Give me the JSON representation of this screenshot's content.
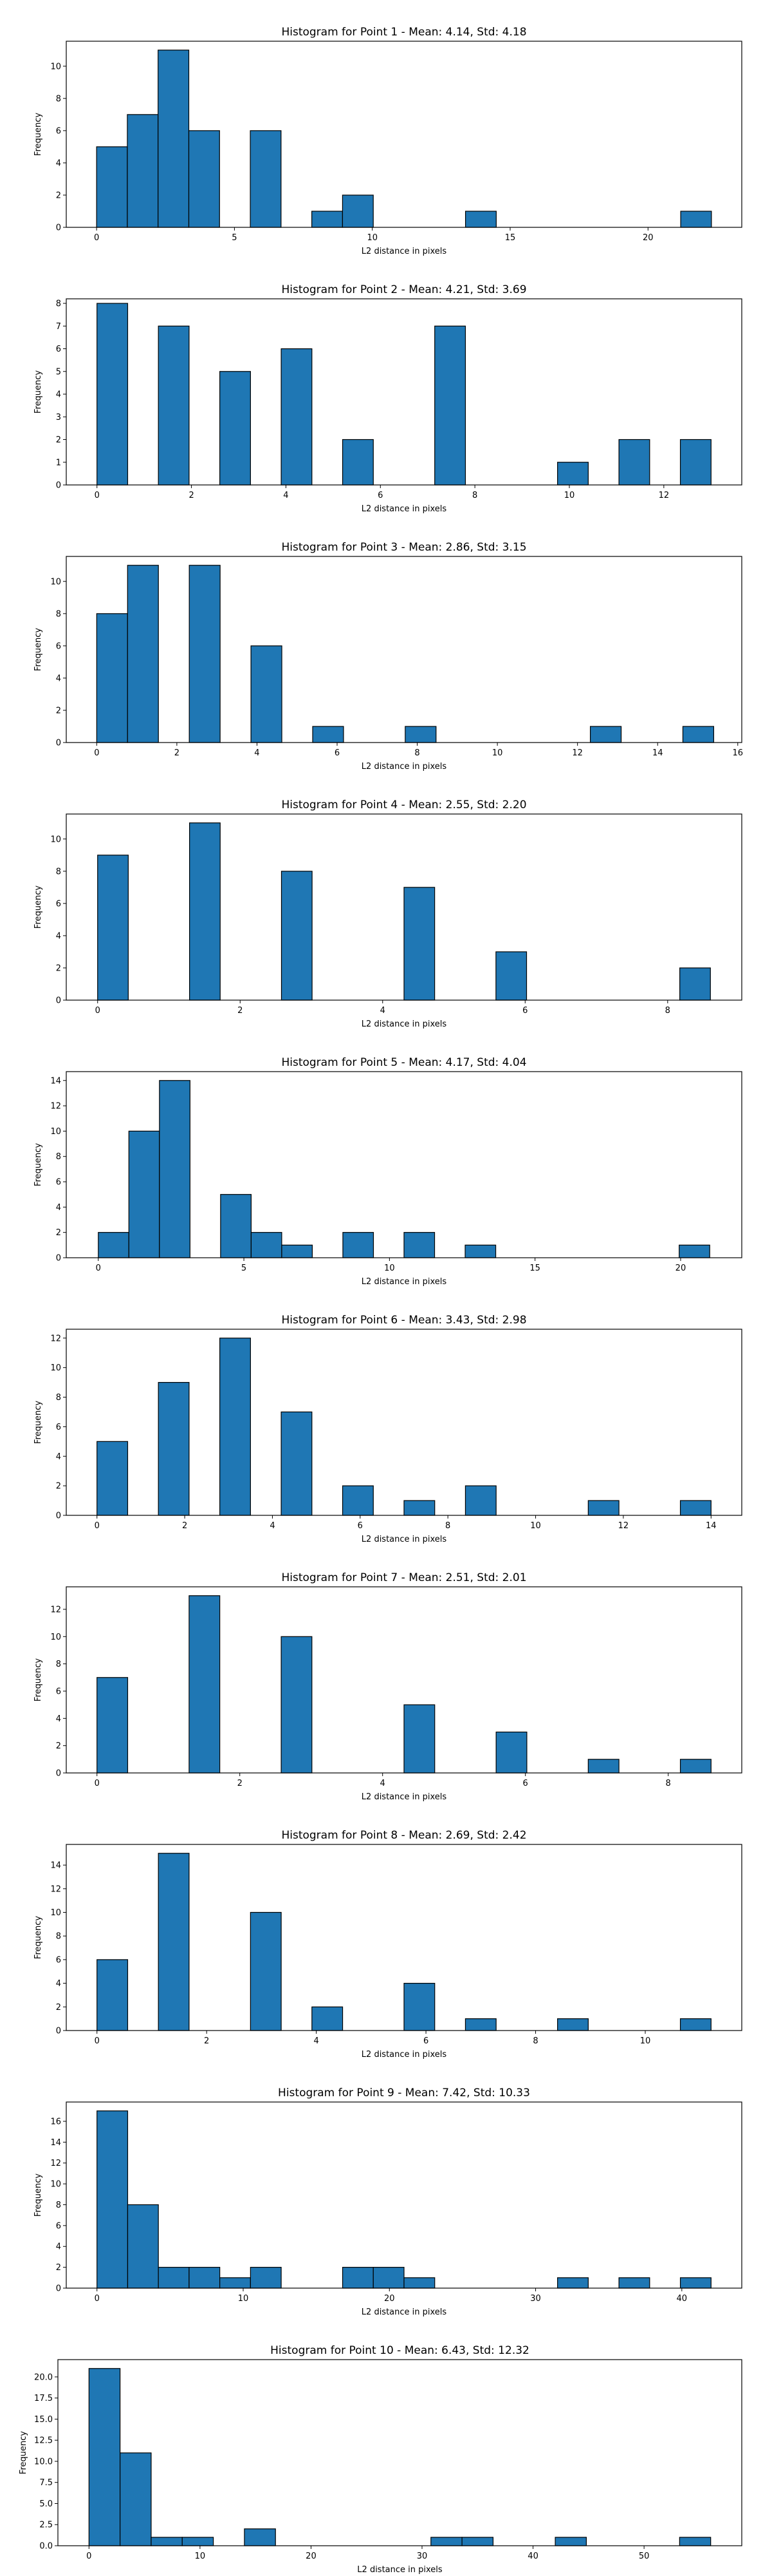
{
  "colors": {
    "bar_fill": "#1f77b4",
    "bar_edge": "#000000",
    "axis": "#000000",
    "background": "#ffffff"
  },
  "chart_data": [
    {
      "type": "bar",
      "title": "Histogram for Point 1 - Mean: 4.14, Std: 4.18",
      "xlabel": "L2 distance in pixels",
      "ylabel": "Frequency",
      "xlim": [
        -1.1,
        23.4
      ],
      "ylim": [
        0,
        11.55
      ],
      "xticks": [
        0,
        5,
        10,
        15,
        20
      ],
      "yticks": [
        0,
        2,
        4,
        6,
        8,
        10
      ],
      "bin_width": 1.115,
      "bins": [
        {
          "start": 0.0,
          "count": 5
        },
        {
          "start": 1.115,
          "count": 7
        },
        {
          "start": 2.23,
          "count": 11
        },
        {
          "start": 3.345,
          "count": 6
        },
        {
          "start": 5.575,
          "count": 6
        },
        {
          "start": 7.805,
          "count": 1
        },
        {
          "start": 8.92,
          "count": 2
        },
        {
          "start": 13.38,
          "count": 1
        },
        {
          "start": 21.185,
          "count": 1
        }
      ]
    },
    {
      "type": "bar",
      "title": "Histogram for Point 2 - Mean: 4.21, Std: 3.69",
      "xlabel": "L2 distance in pixels",
      "ylabel": "Frequency",
      "xlim": [
        -0.65,
        13.65
      ],
      "ylim": [
        0,
        8.2
      ],
      "xticks": [
        0,
        2,
        4,
        6,
        8,
        10,
        12
      ],
      "yticks": [
        0,
        1,
        2,
        3,
        4,
        5,
        6,
        7,
        8
      ],
      "bin_width": 0.65,
      "bins": [
        {
          "start": 0.0,
          "count": 8
        },
        {
          "start": 1.3,
          "count": 7
        },
        {
          "start": 2.6,
          "count": 5
        },
        {
          "start": 3.9,
          "count": 6
        },
        {
          "start": 5.2,
          "count": 2
        },
        {
          "start": 7.15,
          "count": 7
        },
        {
          "start": 9.75,
          "count": 1
        },
        {
          "start": 11.05,
          "count": 2
        },
        {
          "start": 12.35,
          "count": 2
        }
      ]
    },
    {
      "type": "bar",
      "title": "Histogram for Point 3 - Mean: 2.86, Std: 3.15",
      "xlabel": "L2 distance in pixels",
      "ylabel": "Frequency",
      "xlim": [
        -0.76,
        16.1
      ],
      "ylim": [
        0,
        11.55
      ],
      "xticks": [
        0,
        2,
        4,
        6,
        8,
        10,
        12,
        14,
        16
      ],
      "yticks": [
        0,
        2,
        4,
        6,
        8,
        10
      ],
      "bin_width": 0.77,
      "bins": [
        {
          "start": 0.0,
          "count": 8
        },
        {
          "start": 0.77,
          "count": 11
        },
        {
          "start": 2.31,
          "count": 11
        },
        {
          "start": 3.85,
          "count": 6
        },
        {
          "start": 5.39,
          "count": 1
        },
        {
          "start": 7.7,
          "count": 1
        },
        {
          "start": 12.32,
          "count": 1
        },
        {
          "start": 14.63,
          "count": 1
        }
      ]
    },
    {
      "type": "bar",
      "title": "Histogram for Point 4 - Mean: 2.55, Std: 2.20",
      "xlabel": "L2 distance in pixels",
      "ylabel": "Frequency",
      "xlim": [
        -0.44,
        9.04
      ],
      "ylim": [
        0,
        11.55
      ],
      "xticks": [
        0,
        2,
        4,
        6,
        8
      ],
      "yticks": [
        0,
        2,
        4,
        6,
        8,
        10
      ],
      "bin_width": 0.43,
      "bins": [
        {
          "start": 0.0,
          "count": 9
        },
        {
          "start": 1.29,
          "count": 11
        },
        {
          "start": 2.58,
          "count": 8
        },
        {
          "start": 4.3,
          "count": 7
        },
        {
          "start": 5.59,
          "count": 3
        },
        {
          "start": 8.17,
          "count": 2
        }
      ]
    },
    {
      "type": "bar",
      "title": "Histogram for Point 5 - Mean: 4.17, Std: 4.04",
      "xlabel": "L2 distance in pixels",
      "ylabel": "Frequency",
      "xlim": [
        -1.1,
        22.1
      ],
      "ylim": [
        0,
        14.7
      ],
      "xticks": [
        0,
        5,
        10,
        15,
        20
      ],
      "yticks": [
        0,
        2,
        4,
        6,
        8,
        10,
        12,
        14
      ],
      "bin_width": 1.05,
      "bins": [
        {
          "start": 0.0,
          "count": 2
        },
        {
          "start": 1.05,
          "count": 10
        },
        {
          "start": 2.1,
          "count": 14
        },
        {
          "start": 4.2,
          "count": 5
        },
        {
          "start": 5.25,
          "count": 2
        },
        {
          "start": 6.3,
          "count": 1
        },
        {
          "start": 8.4,
          "count": 2
        },
        {
          "start": 10.5,
          "count": 2
        },
        {
          "start": 12.6,
          "count": 1
        },
        {
          "start": 19.95,
          "count": 1
        }
      ]
    },
    {
      "type": "bar",
      "title": "Histogram for Point 6 - Mean: 3.43, Std: 2.98",
      "xlabel": "L2 distance in pixels",
      "ylabel": "Frequency",
      "xlim": [
        -0.7,
        14.7
      ],
      "ylim": [
        0,
        12.6
      ],
      "xticks": [
        0,
        2,
        4,
        6,
        8,
        10,
        12,
        14
      ],
      "yticks": [
        0,
        2,
        4,
        6,
        8,
        10,
        12
      ],
      "bin_width": 0.7,
      "bins": [
        {
          "start": 0.0,
          "count": 5
        },
        {
          "start": 1.4,
          "count": 9
        },
        {
          "start": 2.8,
          "count": 12
        },
        {
          "start": 4.2,
          "count": 7
        },
        {
          "start": 5.6,
          "count": 2
        },
        {
          "start": 7.0,
          "count": 1
        },
        {
          "start": 8.4,
          "count": 2
        },
        {
          "start": 11.2,
          "count": 1
        },
        {
          "start": 13.3,
          "count": 1
        }
      ]
    },
    {
      "type": "bar",
      "title": "Histogram for Point 7 - Mean: 2.51, Std: 2.01",
      "xlabel": "L2 distance in pixels",
      "ylabel": "Frequency",
      "xlim": [
        -0.43,
        9.03
      ],
      "ylim": [
        0,
        13.65
      ],
      "xticks": [
        0,
        2,
        4,
        6,
        8
      ],
      "yticks": [
        0,
        2,
        4,
        6,
        8,
        10,
        12
      ],
      "bin_width": 0.43,
      "bins": [
        {
          "start": 0.0,
          "count": 7
        },
        {
          "start": 1.29,
          "count": 13
        },
        {
          "start": 2.58,
          "count": 10
        },
        {
          "start": 4.3,
          "count": 5
        },
        {
          "start": 5.59,
          "count": 3
        },
        {
          "start": 6.88,
          "count": 1
        },
        {
          "start": 8.17,
          "count": 1
        }
      ]
    },
    {
      "type": "bar",
      "title": "Histogram for Point 8 - Mean: 2.69, Std: 2.42",
      "xlabel": "L2 distance in pixels",
      "ylabel": "Frequency",
      "xlim": [
        -0.56,
        11.76
      ],
      "ylim": [
        0,
        15.75
      ],
      "xticks": [
        0,
        2,
        4,
        6,
        8,
        10
      ],
      "yticks": [
        0,
        2,
        4,
        6,
        8,
        10,
        12,
        14
      ],
      "bin_width": 0.56,
      "bins": [
        {
          "start": 0.0,
          "count": 6
        },
        {
          "start": 1.12,
          "count": 15
        },
        {
          "start": 2.8,
          "count": 10
        },
        {
          "start": 3.92,
          "count": 2
        },
        {
          "start": 5.6,
          "count": 4
        },
        {
          "start": 6.72,
          "count": 1
        },
        {
          "start": 8.4,
          "count": 1
        },
        {
          "start": 10.64,
          "count": 1
        }
      ]
    },
    {
      "type": "bar",
      "title": "Histogram for Point 9 - Mean: 7.42, Std: 10.33",
      "xlabel": "L2 distance in pixels",
      "ylabel": "Frequency",
      "xlim": [
        -2.1,
        44.1
      ],
      "ylim": [
        0,
        17.85
      ],
      "xticks": [
        0,
        10,
        20,
        30,
        40
      ],
      "yticks": [
        0,
        2,
        4,
        6,
        8,
        10,
        12,
        14,
        16
      ],
      "bin_width": 2.1,
      "bins": [
        {
          "start": 0.0,
          "count": 17
        },
        {
          "start": 2.1,
          "count": 8
        },
        {
          "start": 4.2,
          "count": 2
        },
        {
          "start": 6.3,
          "count": 2
        },
        {
          "start": 8.4,
          "count": 1
        },
        {
          "start": 10.5,
          "count": 2
        },
        {
          "start": 16.8,
          "count": 2
        },
        {
          "start": 18.9,
          "count": 2
        },
        {
          "start": 21.0,
          "count": 1
        },
        {
          "start": 31.5,
          "count": 1
        },
        {
          "start": 35.7,
          "count": 1
        },
        {
          "start": 39.9,
          "count": 1
        }
      ]
    },
    {
      "type": "bar",
      "title": "Histogram for Point 10 - Mean: 6.43, Std: 12.32",
      "xlabel": "L2 distance in pixels",
      "ylabel": "Frequency",
      "xlim": [
        -2.8,
        58.8
      ],
      "ylim": [
        0,
        22.05
      ],
      "xticks": [
        0,
        10,
        20,
        30,
        40,
        50
      ],
      "yticks": [
        0.0,
        2.5,
        5.0,
        7.5,
        10.0,
        12.5,
        15.0,
        17.5,
        20.0
      ],
      "bin_width": 2.8,
      "bins": [
        {
          "start": 0.0,
          "count": 21
        },
        {
          "start": 2.8,
          "count": 11
        },
        {
          "start": 5.6,
          "count": 1
        },
        {
          "start": 8.4,
          "count": 1
        },
        {
          "start": 14.0,
          "count": 2
        },
        {
          "start": 30.8,
          "count": 1
        },
        {
          "start": 33.6,
          "count": 1
        },
        {
          "start": 42.0,
          "count": 1
        },
        {
          "start": 53.2,
          "count": 1
        }
      ]
    }
  ]
}
